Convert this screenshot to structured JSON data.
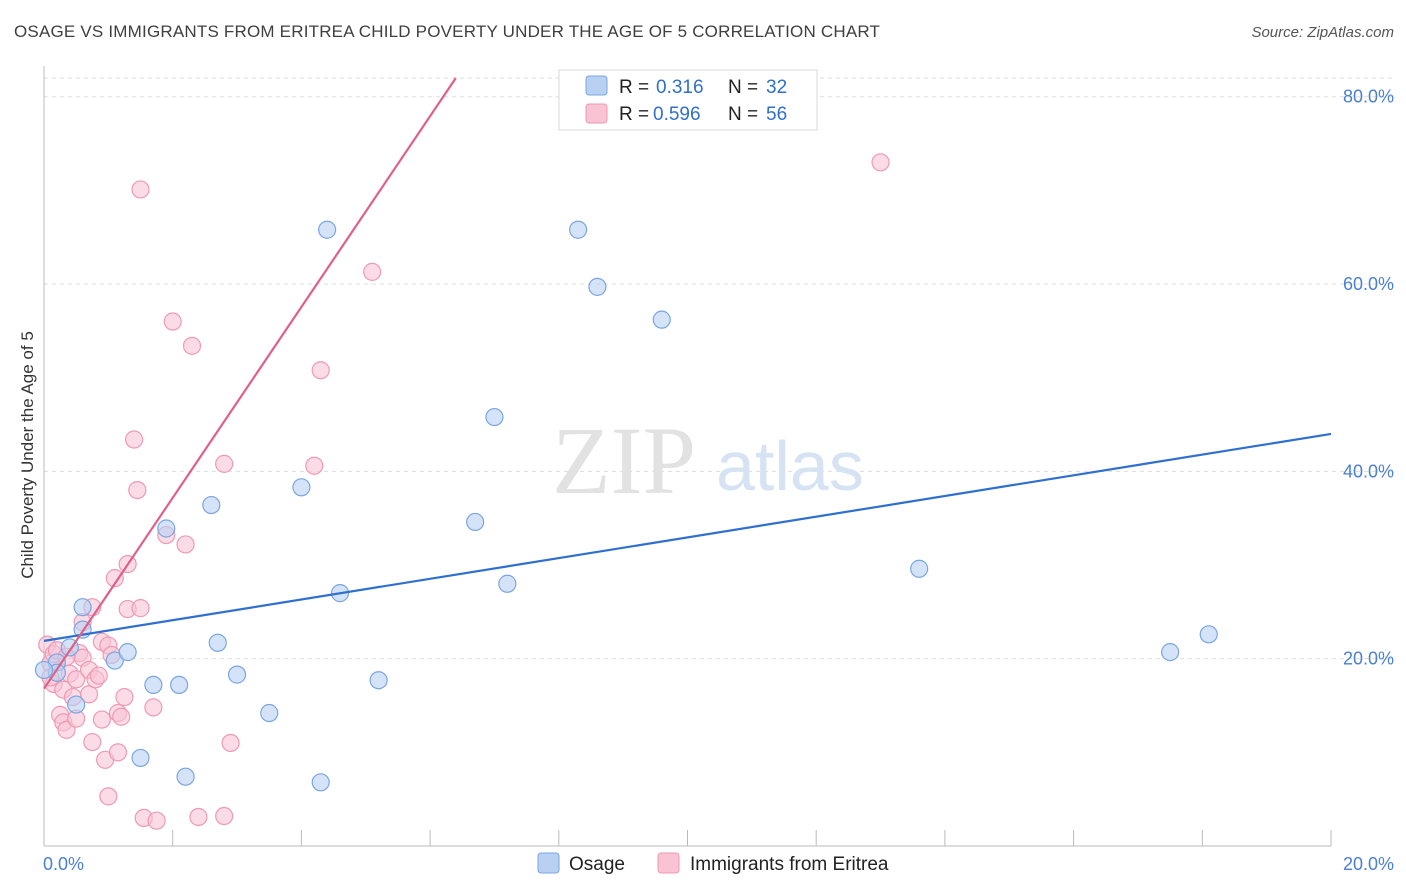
{
  "header": {
    "title": "OSAGE VS IMMIGRANTS FROM ERITREA CHILD POVERTY UNDER THE AGE OF 5 CORRELATION CHART",
    "source": "Source: ZipAtlas.com"
  },
  "watermark": {
    "zip": "ZIP",
    "atlas": "atlas"
  },
  "legend_top": [
    {
      "r_label": "R =",
      "r_value": "0.316",
      "n_label": "N =",
      "n_value": "32"
    },
    {
      "r_label": "R =",
      "r_value": "0.596",
      "n_label": "N =",
      "n_value": "56"
    }
  ],
  "legend_bottom": [
    "Osage",
    "Immigrants from Eritrea"
  ],
  "colors": {
    "osage_fill": "#b8d1f3",
    "osage_stroke": "#7aa6e0",
    "osage_line": "#2f6fd0",
    "eritrea_fill": "#f8c3d3",
    "eritrea_stroke": "#ee9ab5",
    "eritrea_line": "#e0608a",
    "tick_text": "#4a7fd4",
    "grid": "#dddddd"
  },
  "chart_data": {
    "type": "scatter",
    "title": "OSAGE VS IMMIGRANTS FROM ERITREA CHILD POVERTY UNDER THE AGE OF 5 CORRELATION CHART",
    "xlabel": "",
    "ylabel": "Child Poverty Under the Age of 5",
    "xlim": [
      0,
      20
    ],
    "ylim": [
      0,
      82
    ],
    "x_tick_labels": [
      "0.0%",
      "20.0%"
    ],
    "y_ticks": [
      20,
      40,
      60,
      80
    ],
    "y_tick_labels": [
      "20.0%",
      "40.0%",
      "60.0%",
      "80.0%"
    ],
    "grid": true,
    "legend_position": "top-center",
    "series": [
      {
        "name": "Osage",
        "r": 0.316,
        "n": 32,
        "trend": {
          "x": [
            0,
            20
          ],
          "y": [
            21.9,
            44.0
          ]
        },
        "points": [
          [
            0.2,
            19.6
          ],
          [
            0.2,
            18.5
          ],
          [
            0.4,
            21.2
          ],
          [
            0.5,
            15.1
          ],
          [
            0.6,
            25.5
          ],
          [
            0.6,
            23.1
          ],
          [
            1.1,
            19.8
          ],
          [
            1.3,
            20.7
          ],
          [
            1.5,
            9.4
          ],
          [
            1.7,
            17.2
          ],
          [
            1.9,
            33.9
          ],
          [
            2.1,
            17.2
          ],
          [
            2.2,
            7.4
          ],
          [
            2.6,
            36.4
          ],
          [
            2.7,
            21.7
          ],
          [
            3.0,
            18.3
          ],
          [
            3.5,
            14.2
          ],
          [
            4.0,
            38.3
          ],
          [
            4.3,
            6.8
          ],
          [
            4.4,
            65.8
          ],
          [
            4.6,
            27.0
          ],
          [
            5.2,
            17.7
          ],
          [
            6.7,
            34.6
          ],
          [
            7.0,
            45.8
          ],
          [
            7.2,
            28.0
          ],
          [
            8.3,
            65.8
          ],
          [
            8.6,
            59.7
          ],
          [
            9.6,
            56.2
          ],
          [
            13.6,
            29.6
          ],
          [
            17.5,
            20.7
          ],
          [
            18.1,
            22.6
          ],
          [
            0.0,
            18.8
          ]
        ]
      },
      {
        "name": "Immigrants from Eritrea",
        "r": 0.596,
        "n": 56,
        "trend": {
          "x": [
            0,
            6.4
          ],
          "y": [
            16.8,
            82.0
          ]
        },
        "points": [
          [
            0.05,
            21.5
          ],
          [
            0.1,
            19.5
          ],
          [
            0.15,
            17.3
          ],
          [
            0.15,
            20.5
          ],
          [
            0.2,
            20.9
          ],
          [
            0.25,
            14.0
          ],
          [
            0.3,
            16.7
          ],
          [
            0.3,
            13.2
          ],
          [
            0.35,
            12.4
          ],
          [
            0.4,
            18.4
          ],
          [
            0.45,
            15.9
          ],
          [
            0.5,
            17.8
          ],
          [
            0.5,
            13.6
          ],
          [
            0.55,
            20.6
          ],
          [
            0.6,
            20.1
          ],
          [
            0.6,
            23.9
          ],
          [
            0.7,
            18.8
          ],
          [
            0.7,
            16.2
          ],
          [
            0.75,
            25.5
          ],
          [
            0.75,
            11.1
          ],
          [
            0.8,
            17.8
          ],
          [
            0.85,
            18.2
          ],
          [
            0.9,
            21.8
          ],
          [
            0.9,
            13.5
          ],
          [
            0.95,
            9.2
          ],
          [
            1.0,
            5.3
          ],
          [
            1.0,
            21.4
          ],
          [
            1.05,
            20.4
          ],
          [
            1.1,
            28.6
          ],
          [
            1.15,
            10.0
          ],
          [
            1.15,
            14.2
          ],
          [
            1.2,
            13.8
          ],
          [
            1.25,
            15.9
          ],
          [
            1.3,
            30.1
          ],
          [
            1.3,
            25.3
          ],
          [
            1.4,
            43.4
          ],
          [
            1.45,
            38.0
          ],
          [
            1.5,
            25.4
          ],
          [
            1.5,
            70.1
          ],
          [
            1.55,
            3.0
          ],
          [
            1.7,
            14.8
          ],
          [
            1.75,
            2.7
          ],
          [
            1.9,
            33.2
          ],
          [
            2.0,
            56.0
          ],
          [
            2.2,
            32.2
          ],
          [
            2.3,
            53.4
          ],
          [
            2.4,
            3.1
          ],
          [
            2.8,
            40.8
          ],
          [
            2.8,
            3.2
          ],
          [
            2.9,
            11.0
          ],
          [
            4.2,
            40.6
          ],
          [
            4.3,
            50.8
          ],
          [
            5.1,
            61.3
          ],
          [
            13.0,
            73.0
          ],
          [
            0.1,
            18.0
          ],
          [
            0.35,
            20.2
          ]
        ]
      }
    ]
  }
}
